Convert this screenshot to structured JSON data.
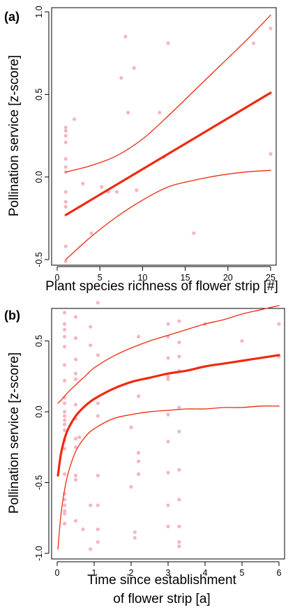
{
  "chart_data": [
    {
      "panel_label": "(a)",
      "type": "scatter",
      "xlabel": "Plant species richness of flower strip [#]",
      "ylabel": "Pollination service [z-score]",
      "xlim": [
        0,
        25
      ],
      "ylim": [
        -0.5,
        1.0
      ],
      "xticks": [
        0,
        5,
        10,
        15,
        20,
        25
      ],
      "yticks": [
        -0.5,
        0.0,
        0.5,
        1.0
      ],
      "xtick_labels": [
        "0",
        "5",
        "10",
        "15",
        "20",
        "25"
      ],
      "ytick_labels": [
        "-0.5",
        "0.0",
        "0.5",
        "1.0"
      ],
      "point_color": "#f4b6c2",
      "line_color": "#ee2a0f",
      "points": [
        {
          "x": 1,
          "y": 0.3
        },
        {
          "x": 1,
          "y": 0.28
        },
        {
          "x": 1,
          "y": 0.25
        },
        {
          "x": 1,
          "y": 0.21
        },
        {
          "x": 1,
          "y": 0.11
        },
        {
          "x": 1,
          "y": 0.06
        },
        {
          "x": 1,
          "y": 0.03
        },
        {
          "x": 1,
          "y": -0.09
        },
        {
          "x": 1,
          "y": -0.15
        },
        {
          "x": 1,
          "y": -0.18
        },
        {
          "x": 1,
          "y": -0.42
        },
        {
          "x": 1,
          "y": -0.51
        },
        {
          "x": 2,
          "y": 0.35
        },
        {
          "x": 3,
          "y": -0.04
        },
        {
          "x": 4,
          "y": -0.34
        },
        {
          "x": 5.2,
          "y": -0.06
        },
        {
          "x": 6,
          "y": -0.09
        },
        {
          "x": 7,
          "y": -0.09
        },
        {
          "x": 7.5,
          "y": 0.6
        },
        {
          "x": 8,
          "y": 0.85
        },
        {
          "x": 8.3,
          "y": 0.39
        },
        {
          "x": 9,
          "y": 0.66
        },
        {
          "x": 9.3,
          "y": -0.08
        },
        {
          "x": 12,
          "y": 0.39
        },
        {
          "x": 12.5,
          "y": 0.12
        },
        {
          "x": 13,
          "y": 0.81
        },
        {
          "x": 16,
          "y": -0.34
        },
        {
          "x": 23,
          "y": 0.81
        },
        {
          "x": 25,
          "y": 0.9
        },
        {
          "x": 25,
          "y": 0.14
        }
      ],
      "series": [
        {
          "role": "fit",
          "x": [
            1,
            25
          ],
          "y": [
            -0.23,
            0.51
          ]
        },
        {
          "role": "upper-ci",
          "x": [
            1,
            4,
            7,
            10,
            13,
            16,
            19,
            22,
            25
          ],
          "y": [
            0.03,
            0.07,
            0.13,
            0.23,
            0.37,
            0.52,
            0.67,
            0.82,
            0.98
          ]
        },
        {
          "role": "lower-ci",
          "x": [
            1,
            4,
            7,
            10,
            13,
            16,
            19,
            22,
            25
          ],
          "y": [
            -0.5,
            -0.36,
            -0.24,
            -0.14,
            -0.06,
            -0.02,
            0.01,
            0.03,
            0.04
          ]
        }
      ]
    },
    {
      "panel_label": "(b)",
      "type": "scatter",
      "xlabel": "Time since establishment\nof flower strip [a]",
      "xlabel_lines": [
        "Time since establishment",
        "of flower strip [a]"
      ],
      "ylabel": "Pollination service [z-score]",
      "xlim": [
        0,
        6
      ],
      "ylim": [
        -1.0,
        0.7
      ],
      "xticks": [
        0,
        1,
        2,
        3,
        4,
        5,
        6
      ],
      "yticks": [
        -1.0,
        -0.5,
        0.0,
        0.5
      ],
      "xtick_labels": [
        "0",
        "1",
        "2",
        "3",
        "4",
        "5",
        "6"
      ],
      "ytick_labels": [
        "-1.0",
        "-0.5",
        "0.0",
        "0.5"
      ],
      "point_color": "#f4b6c2",
      "line_color": "#ee2a0f",
      "points": [
        {
          "x": 0.2,
          "y": 0.7
        },
        {
          "x": 0.2,
          "y": 0.62
        },
        {
          "x": 0.2,
          "y": 0.58
        },
        {
          "x": 0.2,
          "y": 0.53
        },
        {
          "x": 0.2,
          "y": 0.46
        },
        {
          "x": 0.2,
          "y": 0.33
        },
        {
          "x": 0.2,
          "y": 0.22
        },
        {
          "x": 0.2,
          "y": 0.1
        },
        {
          "x": 0.2,
          "y": 0.06
        },
        {
          "x": 0.2,
          "y": 0.0
        },
        {
          "x": 0.2,
          "y": -0.03
        },
        {
          "x": 0.2,
          "y": -0.06
        },
        {
          "x": 0.2,
          "y": -0.09
        },
        {
          "x": 0.2,
          "y": -0.13
        },
        {
          "x": 0.2,
          "y": -0.2
        },
        {
          "x": 0.2,
          "y": -0.26
        },
        {
          "x": 0.2,
          "y": -0.44
        },
        {
          "x": 0.2,
          "y": -0.58
        },
        {
          "x": 0.2,
          "y": -0.62
        },
        {
          "x": 0.2,
          "y": -0.66
        },
        {
          "x": 0.2,
          "y": -0.7
        },
        {
          "x": 0.2,
          "y": -0.72
        },
        {
          "x": 0.2,
          "y": -0.79
        },
        {
          "x": 0.5,
          "y": 0.67
        },
        {
          "x": 0.5,
          "y": 0.52
        },
        {
          "x": 0.5,
          "y": 0.37
        },
        {
          "x": 0.5,
          "y": 0.27
        },
        {
          "x": 0.5,
          "y": 0.23
        },
        {
          "x": 0.5,
          "y": 0.05
        },
        {
          "x": 0.5,
          "y": -0.05
        },
        {
          "x": 0.5,
          "y": -0.19
        },
        {
          "x": 0.5,
          "y": -0.25
        },
        {
          "x": 0.5,
          "y": -0.45
        },
        {
          "x": 0.5,
          "y": -0.48
        },
        {
          "x": 0.5,
          "y": -0.77
        },
        {
          "x": 0.6,
          "y": -0.18
        },
        {
          "x": 0.7,
          "y": -0.83
        },
        {
          "x": 0.9,
          "y": 0.6
        },
        {
          "x": 0.9,
          "y": 0.47
        },
        {
          "x": 0.9,
          "y": -0.66
        },
        {
          "x": 0.9,
          "y": -0.97
        },
        {
          "x": 1.1,
          "y": 0.77
        },
        {
          "x": 1.1,
          "y": 0.4
        },
        {
          "x": 1.1,
          "y": 0.06
        },
        {
          "x": 1.1,
          "y": -0.03
        },
        {
          "x": 1.1,
          "y": -0.45
        },
        {
          "x": 1.1,
          "y": -0.66
        },
        {
          "x": 1.1,
          "y": -0.83
        },
        {
          "x": 1.1,
          "y": -0.92
        },
        {
          "x": 2.0,
          "y": -0.11
        },
        {
          "x": 2.0,
          "y": -0.53
        },
        {
          "x": 2.1,
          "y": -0.85
        },
        {
          "x": 2.1,
          "y": -0.89
        },
        {
          "x": 2.2,
          "y": 0.53
        },
        {
          "x": 2.2,
          "y": 0.11
        },
        {
          "x": 2.2,
          "y": -0.29
        },
        {
          "x": 2.2,
          "y": -0.35
        },
        {
          "x": 2.2,
          "y": -0.44
        },
        {
          "x": 3.0,
          "y": 0.62
        },
        {
          "x": 3.0,
          "y": 0.53
        },
        {
          "x": 3.0,
          "y": 0.38
        },
        {
          "x": 3.0,
          "y": 0.25
        },
        {
          "x": 3.0,
          "y": 0.23
        },
        {
          "x": 3.0,
          "y": -0.02
        },
        {
          "x": 3.0,
          "y": -0.21
        },
        {
          "x": 3.0,
          "y": -0.43
        },
        {
          "x": 3.0,
          "y": -0.66
        },
        {
          "x": 3.0,
          "y": -0.81
        },
        {
          "x": 3.3,
          "y": 0.64
        },
        {
          "x": 3.3,
          "y": 0.49
        },
        {
          "x": 3.3,
          "y": 0.39
        },
        {
          "x": 3.3,
          "y": 0.29
        },
        {
          "x": 3.3,
          "y": 0.03
        },
        {
          "x": 3.3,
          "y": -0.14
        },
        {
          "x": 3.3,
          "y": -0.41
        },
        {
          "x": 3.3,
          "y": -0.62
        },
        {
          "x": 3.3,
          "y": -0.81
        },
        {
          "x": 3.3,
          "y": -0.92
        },
        {
          "x": 3.3,
          "y": -0.95
        },
        {
          "x": 4.0,
          "y": 0.62
        },
        {
          "x": 5.0,
          "y": 0.5
        },
        {
          "x": 6.0,
          "y": 0.62
        },
        {
          "x": 6.0,
          "y": 0.39
        }
      ],
      "series": [
        {
          "role": "fit",
          "x": [
            0.02,
            0.1,
            0.2,
            0.3,
            0.5,
            0.75,
            1.0,
            1.5,
            2.0,
            2.5,
            3.0,
            3.5,
            4.0,
            4.5,
            5.0,
            5.5,
            6.0
          ],
          "y": [
            -0.45,
            -0.3,
            -0.19,
            -0.12,
            -0.03,
            0.04,
            0.09,
            0.16,
            0.21,
            0.24,
            0.27,
            0.29,
            0.32,
            0.34,
            0.36,
            0.38,
            0.4
          ]
        },
        {
          "role": "upper-ci",
          "x": [
            0.02,
            0.1,
            0.2,
            0.3,
            0.5,
            0.75,
            1.0,
            1.5,
            2.0,
            2.5,
            3.0,
            3.5,
            4.0,
            4.5,
            5.0,
            5.5,
            6.0
          ],
          "y": [
            0.06,
            0.08,
            0.11,
            0.14,
            0.19,
            0.25,
            0.31,
            0.39,
            0.45,
            0.5,
            0.54,
            0.58,
            0.62,
            0.65,
            0.69,
            0.72,
            0.75
          ]
        },
        {
          "role": "lower-ci",
          "x": [
            0.02,
            0.1,
            0.2,
            0.3,
            0.5,
            0.75,
            1.0,
            1.5,
            2.0,
            2.5,
            3.0,
            3.5,
            4.0,
            4.5,
            5.0,
            5.5,
            6.0
          ],
          "y": [
            -0.97,
            -0.73,
            -0.55,
            -0.43,
            -0.28,
            -0.18,
            -0.12,
            -0.05,
            -0.02,
            0.0,
            0.01,
            0.02,
            0.02,
            0.03,
            0.03,
            0.04,
            0.04
          ]
        }
      ]
    }
  ]
}
